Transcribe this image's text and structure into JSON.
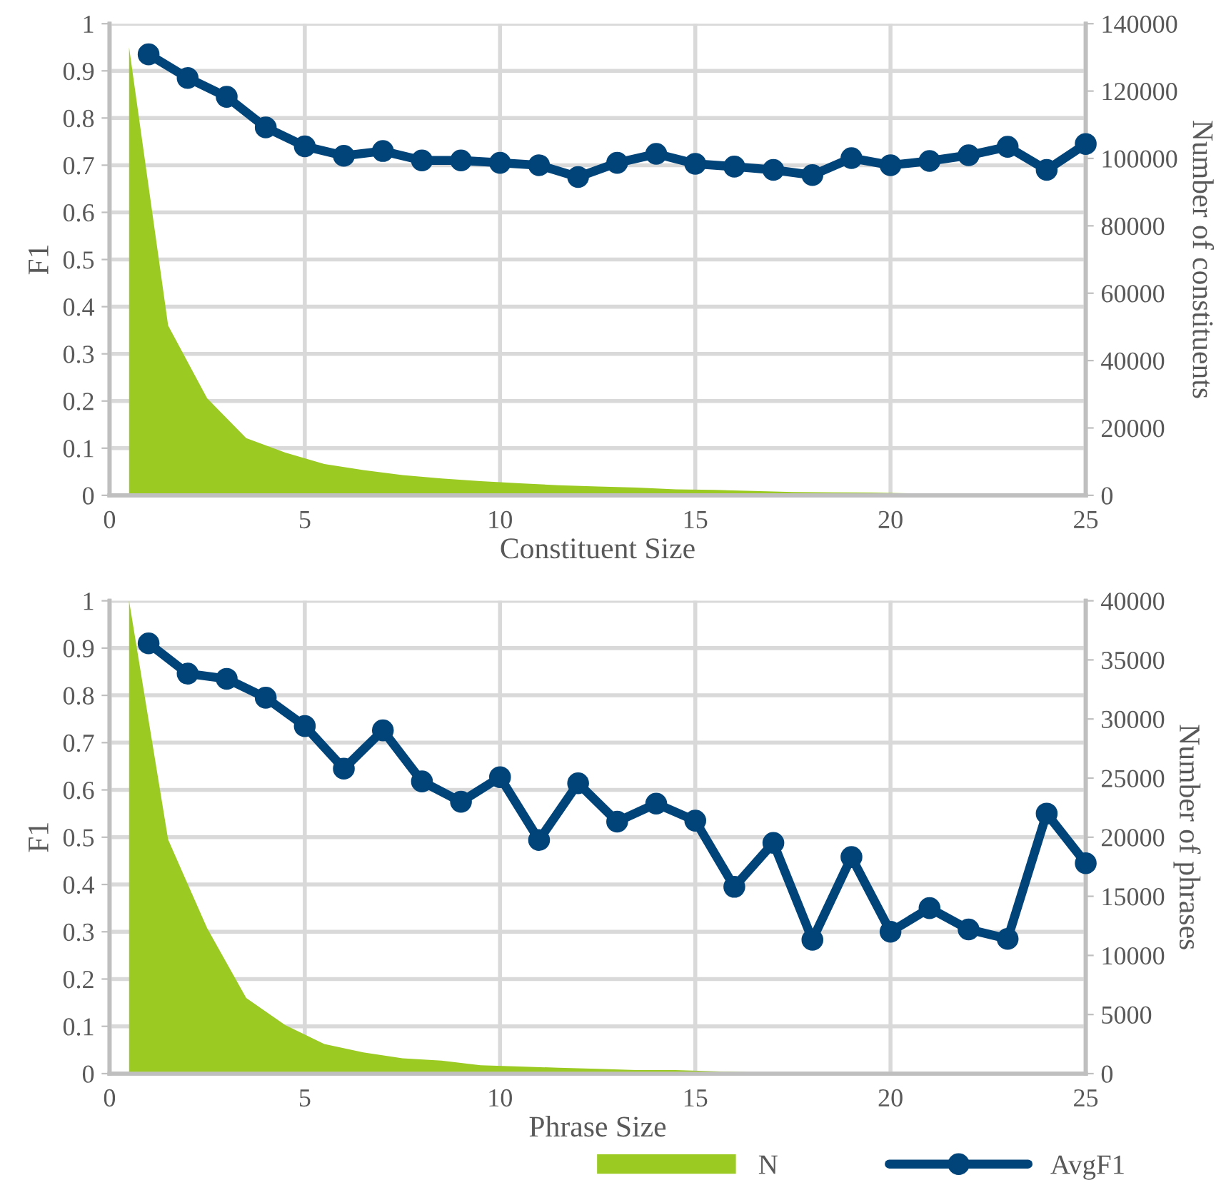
{
  "chart_data": [
    {
      "type": "line",
      "xlabel": "Constituent Size",
      "ylabel": "F1",
      "y2label": "Number of constituents",
      "xlim": [
        0,
        25
      ],
      "xticks": [
        0,
        5,
        10,
        15,
        20,
        25
      ],
      "ylim": [
        0,
        1
      ],
      "yticks": [
        0,
        0.1,
        0.2,
        0.3,
        0.4,
        0.5,
        0.6,
        0.7,
        0.8,
        0.9,
        1
      ],
      "y2lim": [
        0,
        140000
      ],
      "y2ticks": [
        0,
        20000,
        40000,
        60000,
        80000,
        100000,
        120000,
        140000
      ],
      "grid": true,
      "line_style": "solid",
      "series": [
        {
          "type": "area",
          "axis": "y2",
          "color": "#9bcb23",
          "x": [
            0.5,
            1.5,
            2.5,
            3.5,
            4.5,
            5.5,
            6.5,
            7.5,
            8.5,
            9.5,
            10.5,
            11.5,
            12.5,
            13.5,
            14.5,
            15.5,
            16.5,
            17.5,
            18.5,
            19.5,
            20.5,
            21.5,
            22.5,
            23.5,
            24.5
          ],
          "values": [
            133000,
            50400,
            28800,
            17000,
            12700,
            9300,
            7500,
            6000,
            5000,
            4200,
            3600,
            3000,
            2600,
            2300,
            1800,
            1600,
            1300,
            1000,
            900,
            800,
            600,
            500,
            400,
            300,
            200
          ]
        },
        {
          "marker": "circle",
          "color": "#004479",
          "x": [
            1,
            2,
            3,
            4,
            5,
            6,
            7,
            8,
            9,
            10,
            11,
            12,
            13,
            14,
            15,
            16,
            17,
            18,
            19,
            20,
            21,
            22,
            23,
            24,
            25
          ],
          "values": [
            0.935,
            0.885,
            0.845,
            0.78,
            0.74,
            0.72,
            0.73,
            0.71,
            0.71,
            0.705,
            0.7,
            0.675,
            0.705,
            0.724,
            0.703,
            0.697,
            0.69,
            0.679,
            0.715,
            0.7,
            0.709,
            0.721,
            0.739,
            0.69,
            0.745
          ]
        }
      ]
    },
    {
      "type": "line",
      "xlabel": "Phrase Size",
      "ylabel": "F1",
      "y2label": "Number of phrases",
      "xlim": [
        0,
        25
      ],
      "xticks": [
        0,
        5,
        10,
        15,
        20,
        25
      ],
      "ylim": [
        0,
        1
      ],
      "yticks": [
        0,
        0.1,
        0.2,
        0.3,
        0.4,
        0.5,
        0.6,
        0.7,
        0.8,
        0.9,
        1
      ],
      "y2lim": [
        0,
        40000
      ],
      "y2ticks": [
        0,
        5000,
        10000,
        15000,
        20000,
        25000,
        30000,
        35000,
        40000
      ],
      "grid": true,
      "line_style": "solid",
      "legend": "bottom",
      "series": [
        {
          "type": "area",
          "axis": "y2",
          "name": "N",
          "color": "#9bcb23",
          "x": [
            0.5,
            1.5,
            2.5,
            3.5,
            4.5,
            5.5,
            6.5,
            7.5,
            8.5,
            9.5,
            10.5,
            11.5,
            12.5,
            13.5,
            14.5,
            15.5,
            16.5,
            17.5,
            18.5,
            19.5,
            20.5,
            21.5,
            22.5,
            23.5,
            24.5
          ],
          "values": [
            40000,
            19800,
            12300,
            6400,
            4100,
            2500,
            1800,
            1300,
            1100,
            700,
            600,
            500,
            400,
            300,
            300,
            200,
            100,
            100,
            100,
            100,
            0,
            0,
            0,
            0,
            0
          ]
        },
        {
          "name": "AvgF1",
          "marker": "circle",
          "color": "#004479",
          "x": [
            1,
            2,
            3,
            4,
            5,
            6,
            7,
            8,
            9,
            10,
            11,
            12,
            13,
            14,
            15,
            16,
            17,
            18,
            19,
            20,
            21,
            22,
            23,
            24,
            25
          ],
          "values": [
            0.91,
            0.846,
            0.835,
            0.795,
            0.735,
            0.645,
            0.726,
            0.618,
            0.575,
            0.627,
            0.494,
            0.614,
            0.533,
            0.571,
            0.535,
            0.395,
            0.488,
            0.283,
            0.458,
            0.3,
            0.35,
            0.305,
            0.285,
            0.55,
            0.445
          ]
        }
      ]
    }
  ]
}
